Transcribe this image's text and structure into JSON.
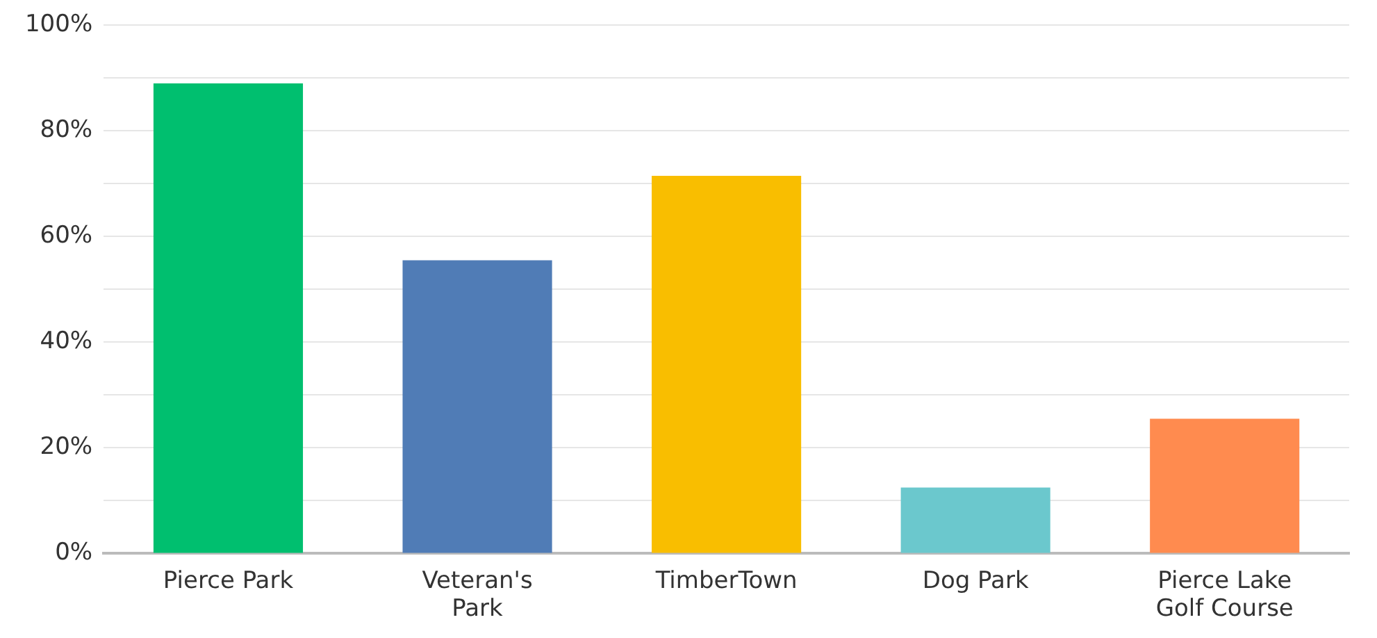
{
  "chart_data": {
    "type": "bar",
    "categories": [
      "Pierce Park",
      "Veteran's Park",
      "TimberTown",
      "Dog Park",
      "Pierce Lake Golf Course"
    ],
    "values": [
      89,
      55.5,
      71.5,
      12.5,
      25.5
    ],
    "colors": [
      "#00bf6f",
      "#507cb6",
      "#f9be00",
      "#6bc8cd",
      "#ff8b4f"
    ],
    "ylim": [
      0,
      100
    ],
    "yticks": [
      {
        "value": 0,
        "label": "0%"
      },
      {
        "value": 10,
        "label": null
      },
      {
        "value": 20,
        "label": "20%"
      },
      {
        "value": 30,
        "label": null
      },
      {
        "value": 40,
        "label": "40%"
      },
      {
        "value": 50,
        "label": null
      },
      {
        "value": 60,
        "label": "60%"
      },
      {
        "value": 70,
        "label": null
      },
      {
        "value": 80,
        "label": "80%"
      },
      {
        "value": 90,
        "label": null
      },
      {
        "value": 100,
        "label": "100%"
      }
    ],
    "grid": true,
    "legend": false
  }
}
